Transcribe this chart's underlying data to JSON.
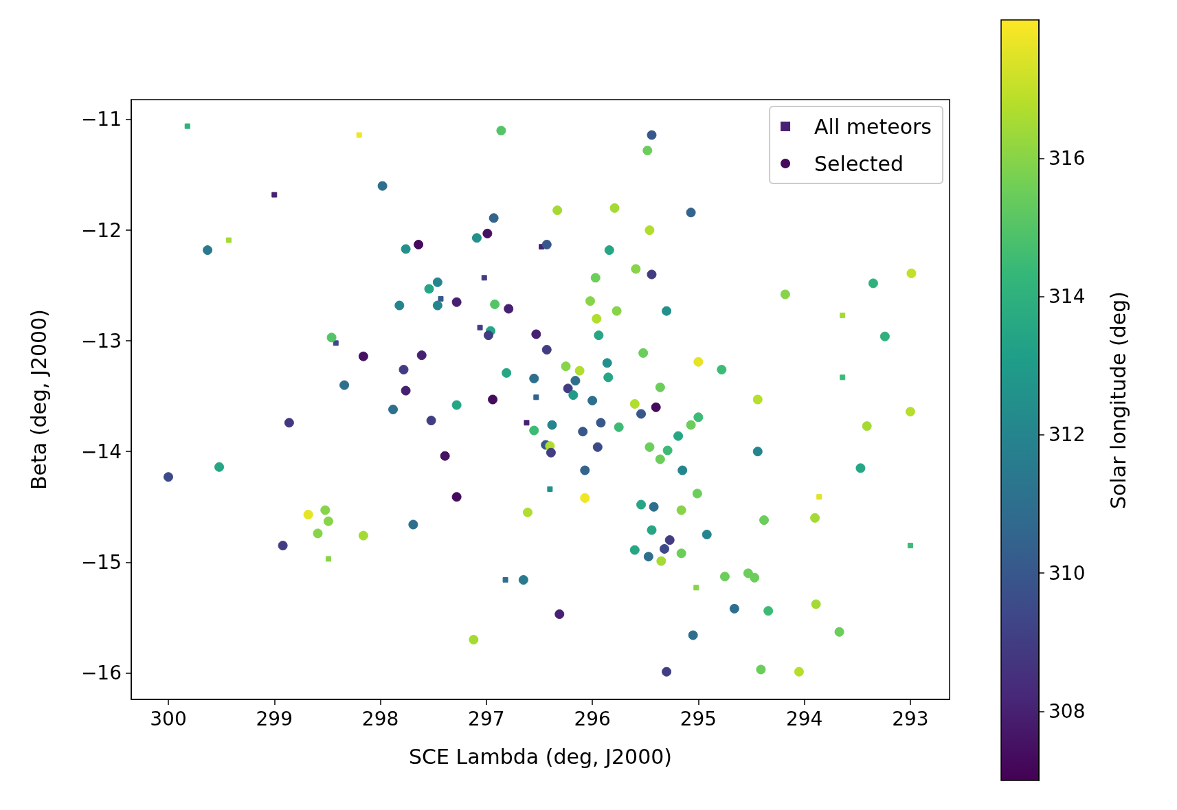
{
  "chart_data": {
    "type": "scatter",
    "xlabel": "SCE Lambda (deg, J2000)",
    "ylabel": "Beta (deg, J2000)",
    "clabel": "Solar longitude (deg)",
    "xlim": [
      300.35,
      292.63
    ],
    "xticks": [
      300,
      299,
      298,
      297,
      296,
      295,
      294,
      293
    ],
    "ylim": [
      -16.24,
      -10.82
    ],
    "yticks": [
      {
        "value": -11,
        "label": "−11"
      },
      {
        "value": -12,
        "label": "−12"
      },
      {
        "value": -13,
        "label": "−13"
      },
      {
        "value": -14,
        "label": "−14"
      },
      {
        "value": -15,
        "label": "−15"
      },
      {
        "value": -16,
        "label": "−16"
      }
    ],
    "clim": [
      307,
      318
    ],
    "cticks": [
      308,
      310,
      312,
      314,
      316
    ],
    "legend": "top right",
    "grid": false,
    "series": [
      {
        "name": "All meteors",
        "marker": "square",
        "x": [
          299.82,
          298.2,
          299.0,
          299.43,
          296.48,
          297.02,
          297.43,
          297.06,
          298.42,
          296.53,
          296.62,
          296.4,
          296.82,
          298.49,
          295.02,
          293.64,
          293.64,
          293.86,
          293.0
        ],
        "values": [
          -11.06,
          -11.14,
          -11.68,
          -12.09,
          -12.15,
          -12.43,
          -12.62,
          -12.88,
          -13.02,
          -13.51,
          -13.74,
          -14.34,
          -15.16,
          -14.97,
          -15.23,
          -12.77,
          -13.33,
          -14.41,
          -14.85
        ],
        "cvalues": [
          314,
          317.8,
          308,
          316.5,
          308,
          309,
          310,
          309,
          309.5,
          310.5,
          308,
          312.5,
          311,
          316,
          316,
          316.5,
          314.5,
          317.5,
          314.5
        ],
        "colors": [
          "#2eb37c",
          "#f1e51d",
          "#482173",
          "#a5db36",
          "#482173",
          "#433e85",
          "#38588c",
          "#433e85",
          "#3f4b89",
          "#33638d",
          "#482173",
          "#21918c",
          "#2d6f8e",
          "#84d44b",
          "#84d44b",
          "#a5db36",
          "#3dbc74",
          "#e0e318",
          "#3dbc74"
        ]
      },
      {
        "name": "Selected",
        "marker": "circle",
        "x": [
          296.86,
          295.44,
          295.48,
          297.98,
          296.93,
          295.07,
          296.33,
          295.79,
          295.46,
          299.63,
          297.64,
          297.76,
          296.99,
          297.09,
          296.43,
          295.84,
          295.59,
          295.44,
          295.97,
          292.99,
          294.18,
          293.35,
          297.54,
          297.46,
          297.82,
          297.46,
          297.28,
          296.92,
          296.79,
          296.02,
          295.77,
          295.3,
          295.96,
          298.46,
          296.96,
          296.98,
          296.53,
          295.94,
          293.24,
          298.16,
          297.61,
          296.43,
          295.52,
          295.0,
          297.78,
          296.25,
          296.12,
          295.86,
          294.78,
          296.81,
          298.34,
          297.76,
          296.55,
          296.16,
          295.85,
          295.36,
          296.23,
          296.18,
          296.94,
          294.44,
          297.28,
          296.0,
          295.6,
          295.4,
          295.54,
          295.0,
          293.0,
          297.88,
          297.52,
          298.86,
          295.92,
          296.38,
          296.55,
          295.75,
          295.07,
          293.41,
          296.09,
          295.19,
          296.44,
          296.4,
          295.46,
          296.39,
          295.95,
          295.29,
          294.44,
          295.36,
          297.39,
          300.0,
          299.52,
          296.07,
          295.15,
          293.47,
          297.28,
          296.07,
          295.01,
          295.54,
          295.42,
          298.52,
          298.68,
          296.61,
          295.16,
          298.49,
          294.38,
          293.9,
          297.69,
          295.44,
          298.59,
          298.16,
          294.92,
          295.27,
          298.92,
          295.32,
          295.6,
          295.16,
          295.47,
          295.35,
          296.65,
          294.75,
          294.53,
          294.47,
          293.89,
          294.66,
          294.34,
          296.31,
          293.67,
          295.05,
          297.12,
          294.41,
          295.3,
          294.05
        ],
        "values": [
          -11.1,
          -11.14,
          -11.28,
          -11.6,
          -11.89,
          -11.84,
          -11.82,
          -11.8,
          -12.0,
          -12.18,
          -12.13,
          -12.17,
          -12.03,
          -12.07,
          -12.13,
          -12.18,
          -12.35,
          -12.4,
          -12.43,
          -12.39,
          -12.58,
          -12.48,
          -12.53,
          -12.47,
          -12.68,
          -12.68,
          -12.65,
          -12.67,
          -12.71,
          -12.64,
          -12.73,
          -12.73,
          -12.8,
          -12.97,
          -12.91,
          -12.95,
          -12.94,
          -12.95,
          -12.96,
          -13.14,
          -13.13,
          -13.08,
          -13.11,
          -13.19,
          -13.26,
          -13.23,
          -13.27,
          -13.2,
          -13.26,
          -13.29,
          -13.4,
          -13.45,
          -13.34,
          -13.36,
          -13.33,
          -13.42,
          -13.43,
          -13.49,
          -13.53,
          -13.53,
          -13.58,
          -13.54,
          -13.57,
          -13.6,
          -13.66,
          -13.69,
          -13.64,
          -13.62,
          -13.72,
          -13.74,
          -13.74,
          -13.76,
          -13.81,
          -13.78,
          -13.76,
          -13.77,
          -13.82,
          -13.86,
          -13.94,
          -13.95,
          -13.96,
          -14.01,
          -13.96,
          -13.99,
          -14.0,
          -14.07,
          -14.04,
          -14.23,
          -14.14,
          -14.17,
          -14.17,
          -14.15,
          -14.41,
          -14.42,
          -14.38,
          -14.48,
          -14.5,
          -14.53,
          -14.57,
          -14.55,
          -14.53,
          -14.63,
          -14.62,
          -14.6,
          -14.66,
          -14.71,
          -14.74,
          -14.76,
          -14.75,
          -14.8,
          -14.85,
          -14.88,
          -14.89,
          -14.92,
          -14.95,
          -14.99,
          -15.16,
          -15.13,
          -15.1,
          -15.14,
          -15.38,
          -15.42,
          -15.44,
          -15.47,
          -15.63,
          -15.66,
          -15.7,
          -15.97,
          -15.99,
          -15.99
        ],
        "cvalues": [
          315,
          310,
          315.5,
          311,
          310.5,
          310.5,
          316.5,
          316.5,
          316.7,
          311.5,
          307.3,
          312.5,
          307.5,
          312.5,
          310,
          313.5,
          316,
          309,
          315.5,
          317,
          316,
          314,
          313.5,
          312,
          312,
          312,
          308,
          315,
          308,
          316,
          316,
          312.5,
          316.7,
          315,
          313.5,
          309,
          308,
          313.5,
          314,
          307.5,
          308,
          309,
          315.5,
          317.6,
          309,
          316,
          316.7,
          312.5,
          314.5,
          313.5,
          311,
          308,
          311,
          311,
          313.5,
          315.5,
          309,
          313,
          307.3,
          316.8,
          313.5,
          311,
          316.7,
          307.3,
          310,
          314.5,
          316.8,
          311,
          309,
          308.8,
          310,
          312,
          314.5,
          314.5,
          315.5,
          316.5,
          310,
          313.5,
          310,
          316.7,
          315.5,
          309,
          309.5,
          314.5,
          312,
          315.5,
          307.5,
          309.5,
          313.5,
          310.5,
          312,
          313.5,
          307.3,
          317.8,
          315.5,
          313.5,
          311,
          316,
          317.6,
          316.7,
          316,
          316,
          315.5,
          316.5,
          311,
          313.5,
          316,
          316.5,
          312,
          309,
          309,
          309.5,
          313.5,
          315.5,
          311,
          316.5,
          311.5,
          315.5,
          315.5,
          315.5,
          316.5,
          311,
          314.5,
          308,
          315.5,
          311,
          316.5,
          315.5,
          309,
          316.8
        ],
        "colors": [
          "#4fc46a",
          "#38588c",
          "#6ccd5a",
          "#2d6f8e",
          "#33638d",
          "#33638d",
          "#a5db36",
          "#a5db36",
          "#b3dd2c",
          "#297b8e",
          "#450a5c",
          "#21918c",
          "#46105f",
          "#21918c",
          "#38588c",
          "#22a785",
          "#84d44b",
          "#433e85",
          "#6ccd5a",
          "#c2df23",
          "#84d44b",
          "#2eb37c",
          "#22a785",
          "#25858e",
          "#25858e",
          "#25858e",
          "#482173",
          "#4fc46a",
          "#482173",
          "#84d44b",
          "#84d44b",
          "#21918c",
          "#b3dd2c",
          "#4fc46a",
          "#22a785",
          "#433e85",
          "#482173",
          "#22a785",
          "#2eb37c",
          "#46105f",
          "#482173",
          "#433e85",
          "#6ccd5a",
          "#e5e419",
          "#433e85",
          "#84d44b",
          "#b3dd2c",
          "#21918c",
          "#3dbc74",
          "#22a785",
          "#2d6f8e",
          "#482173",
          "#2d6f8e",
          "#2d6f8e",
          "#22a785",
          "#6ccd5a",
          "#433e85",
          "#1f9a8a",
          "#450a5c",
          "#b8de29",
          "#22a785",
          "#2d6f8e",
          "#b3dd2c",
          "#450a5c",
          "#38588c",
          "#3dbc74",
          "#b8de29",
          "#2d6f8e",
          "#433e85",
          "#453981",
          "#38588c",
          "#25858e",
          "#3dbc74",
          "#3dbc74",
          "#6ccd5a",
          "#a5db36",
          "#38588c",
          "#22a785",
          "#38588c",
          "#b3dd2c",
          "#6ccd5a",
          "#433e85",
          "#3f4b89",
          "#3dbc74",
          "#25858e",
          "#6ccd5a",
          "#46105f",
          "#3f4b89",
          "#22a785",
          "#33638d",
          "#25858e",
          "#22a785",
          "#450a5c",
          "#f1e51d",
          "#6ccd5a",
          "#22a785",
          "#2d6f8e",
          "#84d44b",
          "#e5e419",
          "#b3dd2c",
          "#84d44b",
          "#84d44b",
          "#6ccd5a",
          "#a5db36",
          "#2d6f8e",
          "#22a785",
          "#84d44b",
          "#a5db36",
          "#25858e",
          "#433e85",
          "#433e85",
          "#3f4b89",
          "#22a785",
          "#6ccd5a",
          "#2d6f8e",
          "#a5db36",
          "#297b8e",
          "#6ccd5a",
          "#6ccd5a",
          "#6ccd5a",
          "#a5db36",
          "#2d6f8e",
          "#3dbc74",
          "#482173",
          "#6ccd5a",
          "#2d6f8e",
          "#a5db36",
          "#6ccd5a",
          "#433e85",
          "#b8de29"
        ]
      }
    ]
  }
}
